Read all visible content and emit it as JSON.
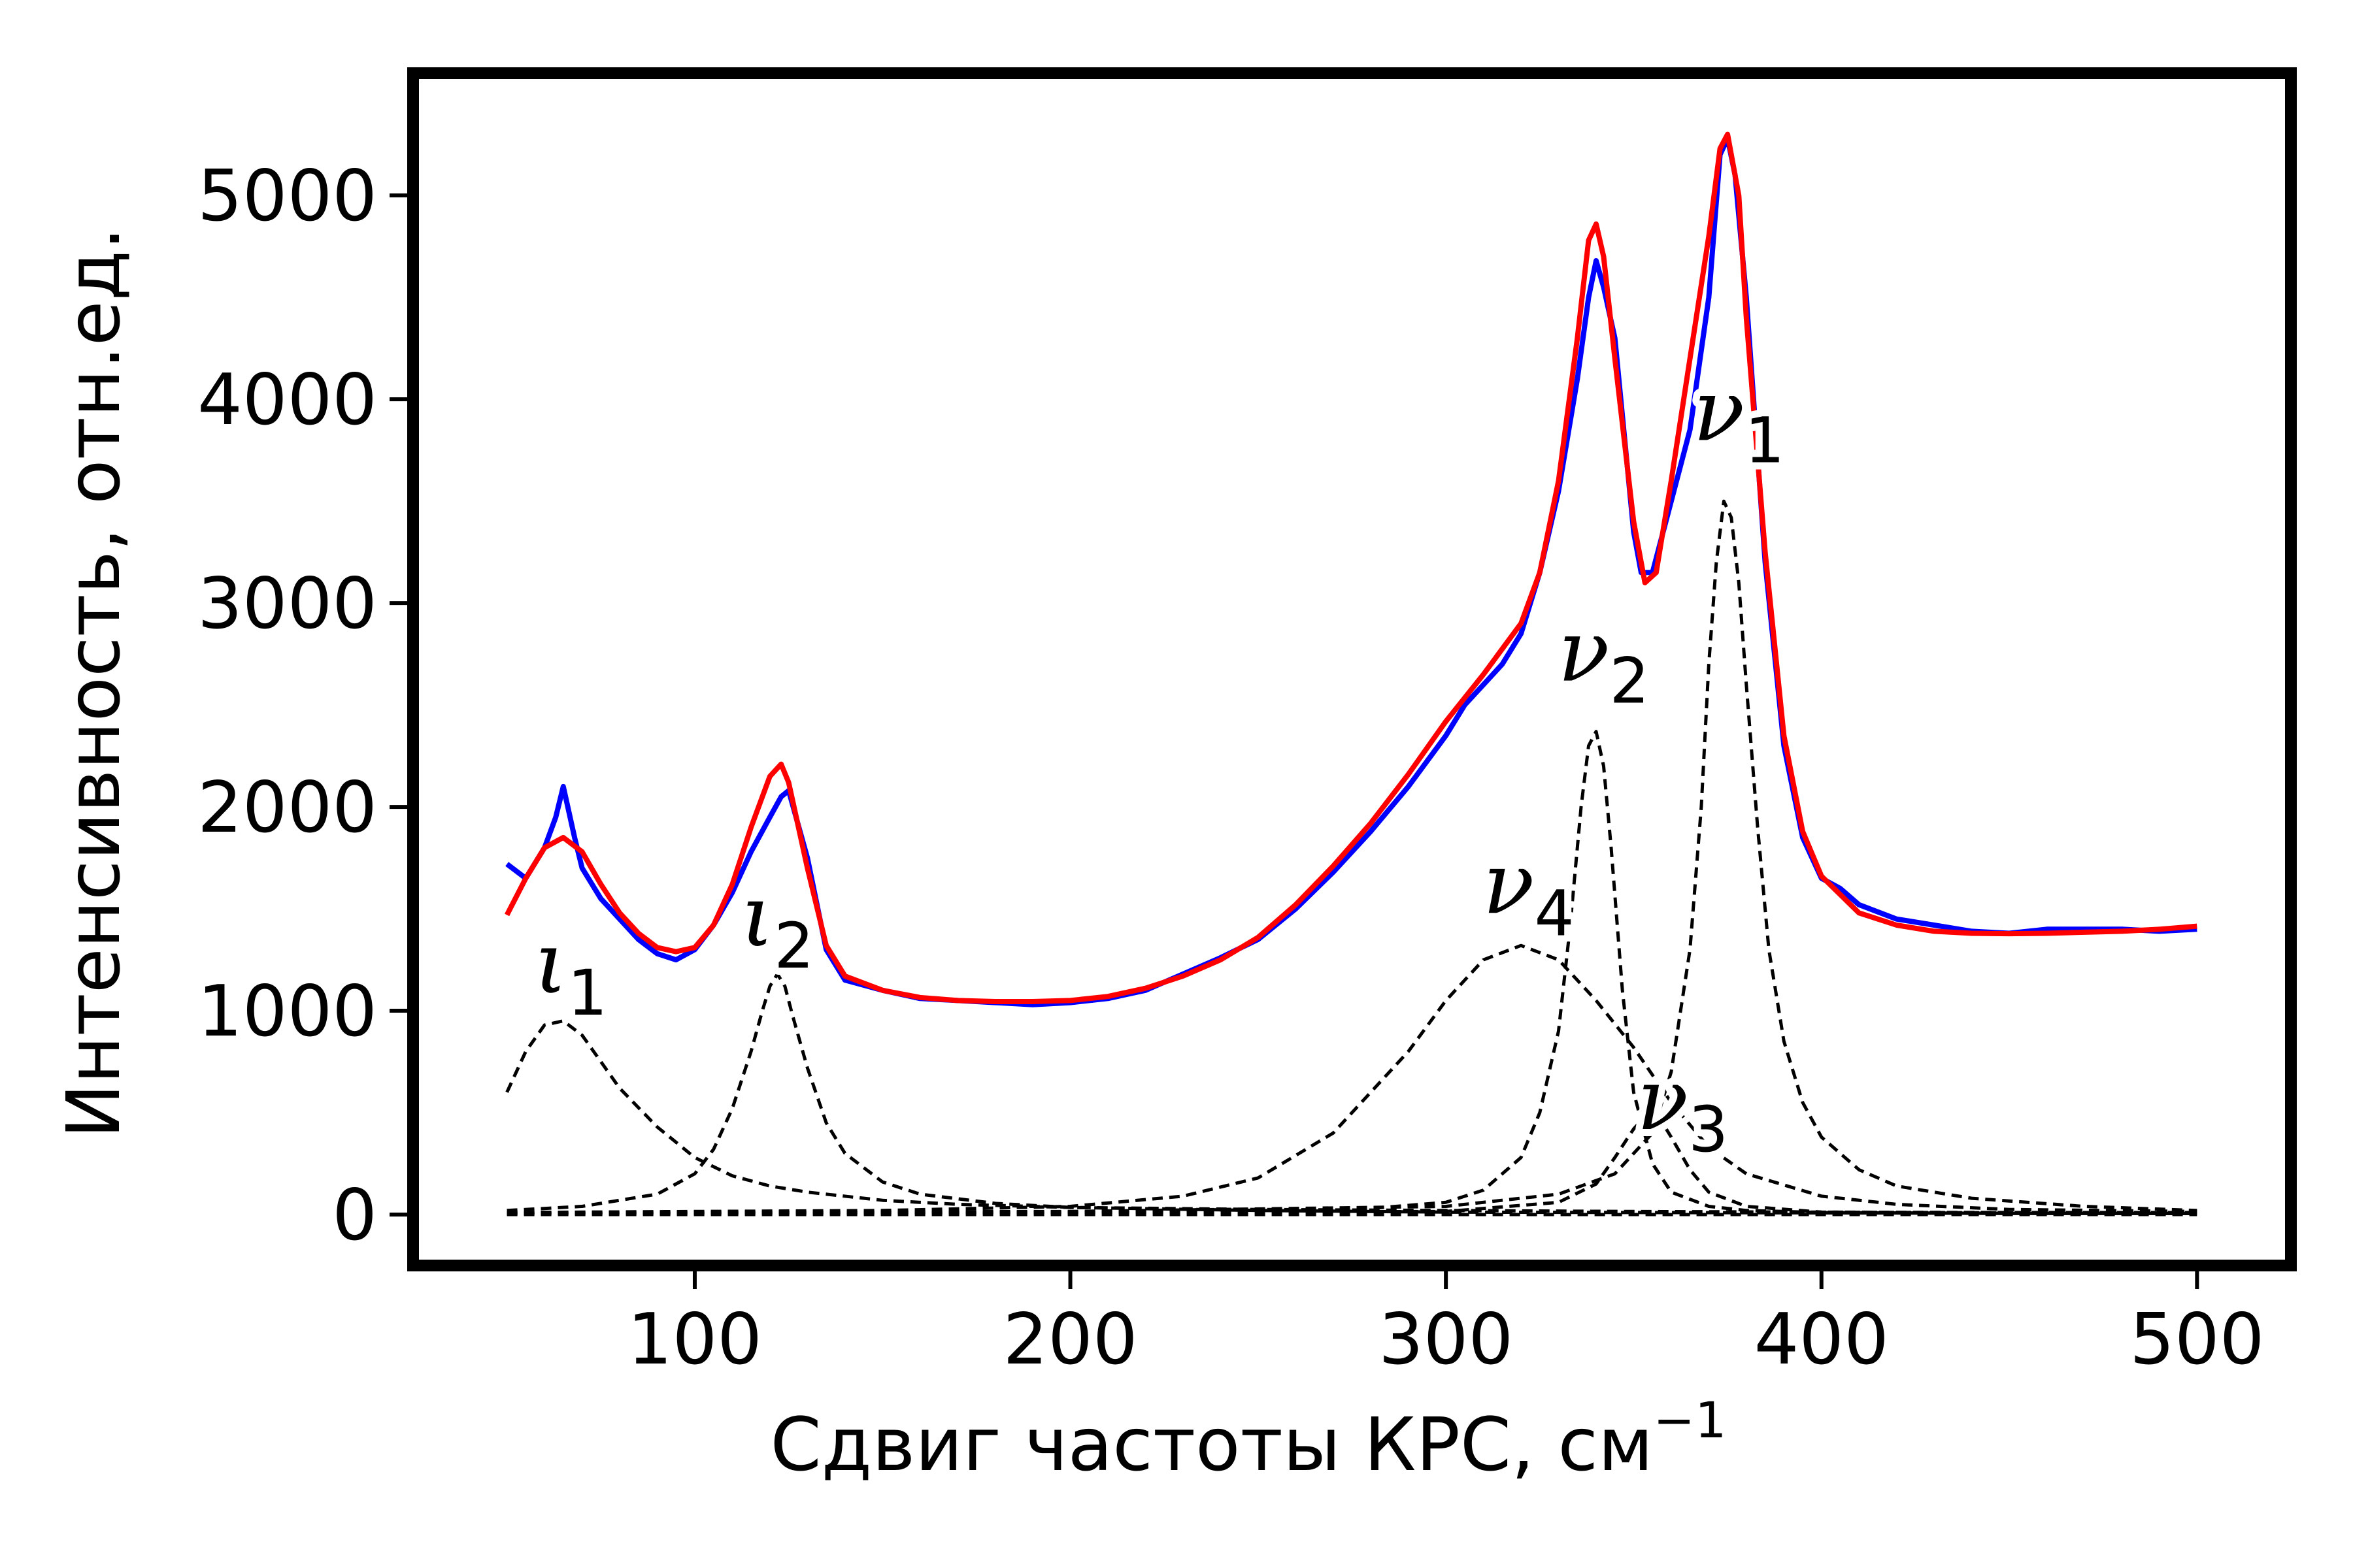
{
  "chart_data": {
    "type": "line",
    "xlabel": "Сдвиг частоты КРС, см",
    "xlabel_sup": "−1",
    "ylabel": "Интенсивность, отн.ед.",
    "xlim": [
      25,
      525
    ],
    "ylim": [
      -250,
      5600
    ],
    "x_ticks": [
      100,
      200,
      300,
      400,
      500
    ],
    "y_ticks": [
      0,
      1000,
      2000,
      3000,
      4000,
      5000
    ],
    "x_tick_labels": [
      "100",
      "200",
      "300",
      "400",
      "500"
    ],
    "y_tick_labels": [
      "0",
      "1000",
      "2000",
      "3000",
      "4000",
      "5000"
    ],
    "grid": false,
    "colors": {
      "experimental": "#0000ff",
      "fit": "#ff0000",
      "components": "#000000"
    },
    "series": [
      {
        "color": "#0000ff",
        "style": "solid",
        "x": [
          50,
          55,
          60,
          63,
          65,
          68,
          70,
          75,
          80,
          85,
          90,
          95,
          100,
          105,
          110,
          115,
          120,
          123,
          125,
          130,
          135,
          140,
          150,
          160,
          170,
          180,
          190,
          200,
          210,
          220,
          230,
          240,
          250,
          260,
          270,
          280,
          290,
          300,
          305,
          310,
          315,
          320,
          325,
          330,
          335,
          338,
          340,
          342,
          345,
          350,
          352,
          355,
          360,
          365,
          370,
          373,
          375,
          377,
          380,
          385,
          390,
          395,
          400,
          405,
          410,
          420,
          430,
          440,
          450,
          460,
          470,
          480,
          490,
          500
        ],
        "y": [
          1720,
          1650,
          1800,
          1950,
          2100,
          1850,
          1700,
          1550,
          1450,
          1350,
          1280,
          1250,
          1300,
          1420,
          1580,
          1780,
          1950,
          2050,
          2080,
          1750,
          1300,
          1150,
          1100,
          1060,
          1050,
          1040,
          1030,
          1040,
          1060,
          1100,
          1180,
          1260,
          1350,
          1500,
          1680,
          1880,
          2100,
          2350,
          2500,
          2600,
          2700,
          2850,
          3150,
          3550,
          4100,
          4500,
          4680,
          4550,
          4300,
          3350,
          3150,
          3150,
          3500,
          3850,
          4500,
          5200,
          5280,
          5100,
          4500,
          3200,
          2300,
          1850,
          1650,
          1600,
          1520,
          1450,
          1420,
          1390,
          1380,
          1400,
          1400,
          1400,
          1390,
          1400
        ]
      },
      {
        "color": "#ff0000",
        "style": "solid",
        "x": [
          50,
          55,
          60,
          65,
          70,
          75,
          80,
          85,
          90,
          95,
          100,
          105,
          110,
          115,
          120,
          123,
          125,
          130,
          135,
          140,
          150,
          160,
          170,
          180,
          190,
          200,
          210,
          220,
          230,
          240,
          250,
          260,
          270,
          280,
          290,
          300,
          310,
          320,
          325,
          330,
          335,
          338,
          340,
          342,
          345,
          350,
          353,
          356,
          360,
          365,
          370,
          373,
          375,
          378,
          380,
          385,
          390,
          395,
          400,
          410,
          420,
          430,
          440,
          450,
          460,
          470,
          480,
          490,
          500
        ],
        "y": [
          1470,
          1650,
          1800,
          1850,
          1780,
          1620,
          1480,
          1380,
          1310,
          1290,
          1310,
          1420,
          1620,
          1900,
          2150,
          2210,
          2120,
          1700,
          1320,
          1170,
          1100,
          1065,
          1050,
          1045,
          1045,
          1050,
          1070,
          1110,
          1170,
          1250,
          1360,
          1520,
          1710,
          1920,
          2160,
          2420,
          2650,
          2900,
          3150,
          3600,
          4300,
          4780,
          4860,
          4700,
          4200,
          3400,
          3100,
          3150,
          3600,
          4200,
          4800,
          5230,
          5300,
          5000,
          4400,
          3250,
          2350,
          1880,
          1660,
          1480,
          1420,
          1390,
          1380,
          1378,
          1380,
          1385,
          1390,
          1400,
          1415
        ]
      },
      {
        "color": "#000000",
        "style": "dashed",
        "x": [
          50,
          55,
          60,
          65,
          70,
          75,
          80,
          90,
          100,
          110,
          120,
          130,
          150,
          170,
          200,
          250,
          300,
          350,
          400,
          450,
          500
        ],
        "y": [
          600,
          800,
          930,
          950,
          880,
          750,
          620,
          430,
          280,
          190,
          140,
          110,
          70,
          50,
          35,
          25,
          20,
          15,
          12,
          10,
          10
        ]
      },
      {
        "color": "#000000",
        "style": "dashed",
        "x": [
          50,
          70,
          90,
          100,
          105,
          110,
          115,
          118,
          120,
          122,
          124,
          126,
          130,
          135,
          140,
          150,
          160,
          180,
          200,
          250,
          300,
          400,
          500
        ],
        "y": [
          20,
          40,
          100,
          200,
          320,
          520,
          800,
          1000,
          1120,
          1180,
          1120,
          980,
          720,
          450,
          300,
          160,
          100,
          55,
          35,
          20,
          12,
          8,
          5
        ]
      },
      {
        "color": "#000000",
        "style": "dashed",
        "x": [
          50,
          100,
          150,
          200,
          230,
          250,
          270,
          290,
          300,
          310,
          320,
          330,
          340,
          350,
          360,
          370,
          380,
          400,
          420,
          450,
          500
        ],
        "y": [
          10,
          15,
          20,
          40,
          90,
          180,
          400,
          800,
          1050,
          1250,
          1320,
          1250,
          1050,
          820,
          550,
          330,
          200,
          90,
          50,
          25,
          15
        ]
      },
      {
        "color": "#000000",
        "style": "dashed",
        "x": [
          50,
          200,
          280,
          300,
          310,
          320,
          325,
          330,
          333,
          336,
          338,
          340,
          342,
          344,
          347,
          350,
          355,
          360,
          370,
          380,
          400,
          450,
          500
        ],
        "y": [
          5,
          10,
          30,
          60,
          120,
          280,
          500,
          900,
          1400,
          2000,
          2300,
          2370,
          2200,
          1800,
          1100,
          600,
          250,
          110,
          40,
          20,
          10,
          5,
          5
        ]
      },
      {
        "color": "#000000",
        "style": "dashed",
        "x": [
          50,
          300,
          330,
          340,
          345,
          350,
          353,
          355,
          357,
          360,
          365,
          370,
          380,
          400,
          500
        ],
        "y": [
          5,
          15,
          60,
          150,
          280,
          420,
          480,
          500,
          470,
          380,
          220,
          110,
          40,
          12,
          5
        ]
      },
      {
        "color": "#000000",
        "style": "dashed",
        "x": [
          50,
          200,
          300,
          330,
          345,
          355,
          360,
          365,
          368,
          370,
          372,
          374,
          376,
          378,
          380,
          383,
          386,
          390,
          395,
          400,
          410,
          420,
          440,
          470,
          500
        ],
        "y": [
          10,
          15,
          40,
          100,
          200,
          400,
          700,
          1300,
          2000,
          2700,
          3200,
          3500,
          3420,
          3100,
          2600,
          1900,
          1300,
          850,
          550,
          380,
          220,
          140,
          80,
          40,
          20
        ]
      },
      {
        "color": "#000000",
        "style": "dashed",
        "x": [
          50,
          500
        ],
        "y": [
          0,
          0
        ]
      }
    ],
    "annotations": [
      {
        "base": "ι",
        "sub": "1",
        "x": 67,
        "y": 1090
      },
      {
        "base": "ι",
        "sub": "2",
        "x": 122,
        "y": 1320
      },
      {
        "base": "ν",
        "sub": "4",
        "x": 322,
        "y": 1480
      },
      {
        "base": "ν",
        "sub": "2",
        "x": 342,
        "y": 2620
      },
      {
        "base": "ν",
        "sub": "3",
        "x": 363,
        "y": 420
      },
      {
        "base": "ν",
        "sub": "1",
        "x": 378,
        "y": 3800
      }
    ]
  }
}
